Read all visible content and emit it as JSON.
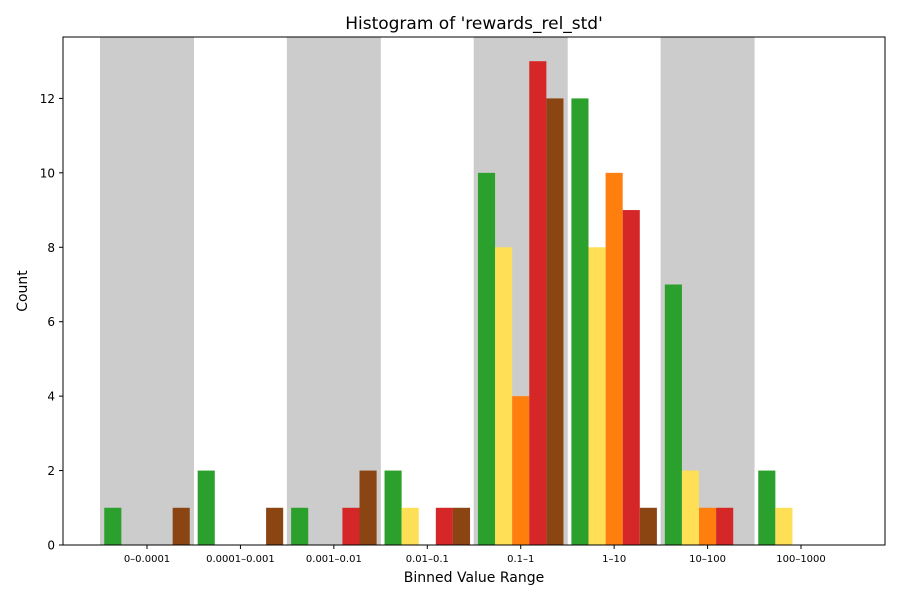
{
  "chart_data": {
    "type": "bar",
    "title": "Histogram of 'rewards_rel_std'",
    "xlabel": "Binned Value Range",
    "ylabel": "Count",
    "categories": [
      "0–0.0001",
      "0.0001–0.001",
      "0.001–0.01",
      "0.01–0.1",
      "0.1–1",
      "1–10",
      "10–100",
      "100–1000"
    ],
    "ylim": [
      0,
      13.65
    ],
    "yticks": [
      0,
      2,
      4,
      6,
      8,
      10,
      12
    ],
    "grid": false,
    "legend": "none",
    "band_color": "#cccccc",
    "series": [
      {
        "color": "#2ca02c",
        "values": [
          1,
          2,
          1,
          2,
          10,
          12,
          7,
          2
        ]
      },
      {
        "color": "#ffdf55",
        "values": [
          0,
          0,
          0,
          1,
          8,
          8,
          2,
          1
        ]
      },
      {
        "color": "#ff7f0e",
        "values": [
          0,
          0,
          0,
          0,
          4,
          10,
          1,
          0
        ]
      },
      {
        "color": "#d62728",
        "values": [
          0,
          0,
          1,
          1,
          13,
          9,
          1,
          0
        ]
      },
      {
        "color": "#8b4513",
        "values": [
          1,
          1,
          2,
          1,
          12,
          1,
          0,
          0
        ]
      }
    ]
  }
}
